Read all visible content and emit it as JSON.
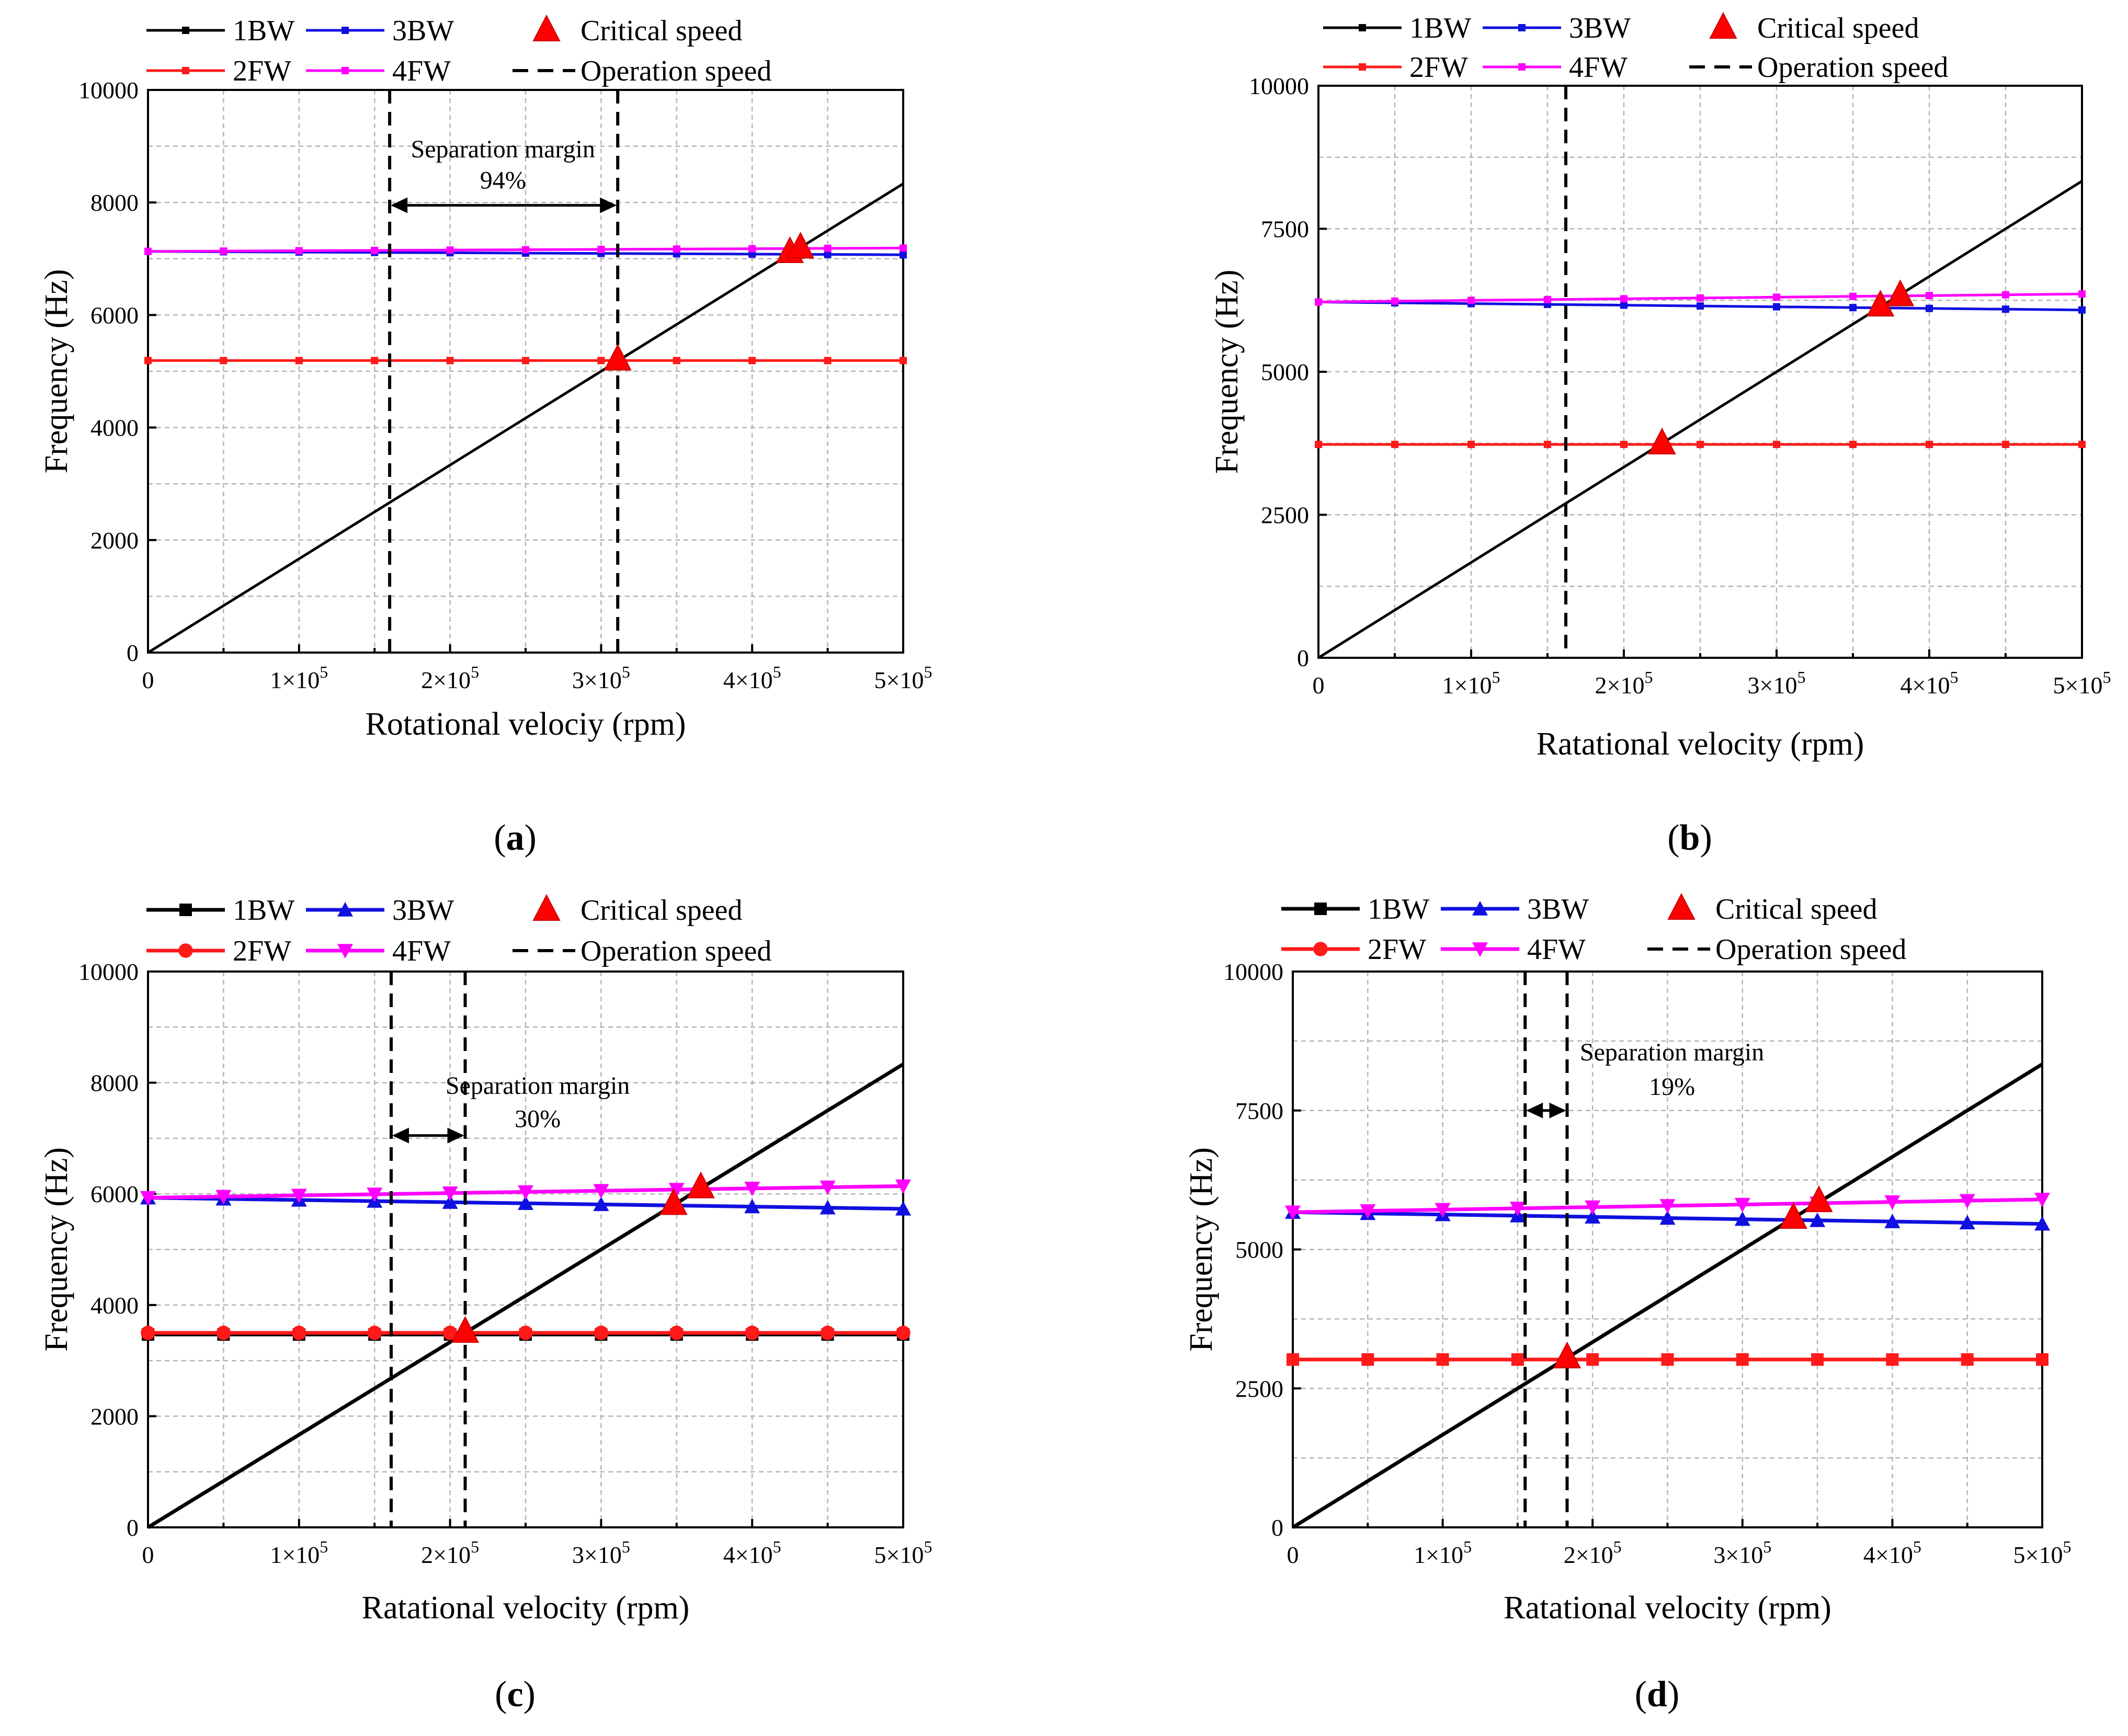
{
  "chart_data": [
    {
      "type": "line",
      "panel_label": "a",
      "xlabel": "Rotational velociy (rpm)",
      "ylabel": "Frequency (Hz)",
      "xlim": [
        0,
        500000
      ],
      "ylim": [
        0,
        10000
      ],
      "x_ticks": [
        0,
        100000,
        200000,
        300000,
        400000,
        500000
      ],
      "x_tick_labels": [
        {
          "m": "0",
          "e": ""
        },
        {
          "m": "1×10",
          "e": "5"
        },
        {
          "m": "2×10",
          "e": "5"
        },
        {
          "m": "3×10",
          "e": "5"
        },
        {
          "m": "4×10",
          "e": "5"
        },
        {
          "m": "5×10",
          "e": "5"
        }
      ],
      "y_ticks": [
        0,
        2000,
        4000,
        6000,
        8000,
        10000
      ],
      "y_tick_labels": [
        "0",
        "2000",
        "4000",
        "6000",
        "8000",
        "10000"
      ],
      "marker_style": "small",
      "legend": {
        "placement": "top-left",
        "entries": [
          {
            "label": "1BW",
            "kind": "line",
            "color": "#000000",
            "marker": "square"
          },
          {
            "label": "3BW",
            "kind": "line",
            "color": "#1010e0",
            "marker": "square"
          },
          {
            "label": "Critical speed",
            "kind": "triangle",
            "color": "#ff0000"
          },
          {
            "label": "2FW",
            "kind": "line",
            "color": "#ff1a1a",
            "marker": "square"
          },
          {
            "label": "4FW",
            "kind": "line",
            "color": "#ff00ff",
            "marker": "square"
          },
          {
            "label": "Operation speed",
            "kind": "dashed",
            "color": "#000000"
          }
        ]
      },
      "series": [
        {
          "name": "1BW",
          "color": "#000000",
          "marker": "none",
          "x": [
            0,
            500000
          ],
          "y": [
            0,
            8333
          ]
        },
        {
          "name": "2FW",
          "color": "#ff1a1a",
          "marker": "square",
          "x": [
            0,
            500000
          ],
          "y": [
            5190,
            5190
          ]
        },
        {
          "name": "3BW",
          "color": "#1010e0",
          "marker": "square",
          "x": [
            0,
            500000
          ],
          "y": [
            7130,
            7070
          ]
        },
        {
          "name": "4FW",
          "color": "#ff00ff",
          "marker": "square",
          "x": [
            0,
            500000
          ],
          "y": [
            7130,
            7190
          ]
        }
      ],
      "critical_speeds": [
        {
          "x": 311000,
          "y": 5190
        },
        {
          "x": 425000,
          "y": 7100
        },
        {
          "x": 432000,
          "y": 7180
        }
      ],
      "operation_speeds": [
        160000,
        311000
      ],
      "annotation": {
        "line1": "Separation margin",
        "line2": "94%",
        "x_from": 160000,
        "x_to": 311000,
        "arrow_y": 7950,
        "text_x": 235000,
        "text_y1": 8800,
        "text_y2": 8250
      }
    },
    {
      "type": "line",
      "panel_label": "b",
      "xlabel": "Ratational velocity (rpm)",
      "ylabel": "Frequency (Hz)",
      "xlim": [
        0,
        500000
      ],
      "ylim": [
        0,
        10000
      ],
      "x_ticks": [
        0,
        100000,
        200000,
        300000,
        400000,
        500000
      ],
      "x_tick_labels": [
        {
          "m": "0",
          "e": ""
        },
        {
          "m": "1×10",
          "e": "5"
        },
        {
          "m": "2×10",
          "e": "5"
        },
        {
          "m": "3×10",
          "e": "5"
        },
        {
          "m": "4×10",
          "e": "5"
        },
        {
          "m": "5×10",
          "e": "5"
        }
      ],
      "y_ticks": [
        0,
        2500,
        5000,
        7500,
        10000
      ],
      "y_tick_labels": [
        "0",
        "2500",
        "5000",
        "7500",
        "10000"
      ],
      "marker_style": "small",
      "legend": {
        "placement": "top-left",
        "entries": [
          {
            "label": "1BW",
            "kind": "line",
            "color": "#000000",
            "marker": "square"
          },
          {
            "label": "3BW",
            "kind": "line",
            "color": "#1010e0",
            "marker": "square"
          },
          {
            "label": "Critical speed",
            "kind": "triangle",
            "color": "#ff0000"
          },
          {
            "label": "2FW",
            "kind": "line",
            "color": "#ff1a1a",
            "marker": "square"
          },
          {
            "label": "4FW",
            "kind": "line",
            "color": "#ff00ff",
            "marker": "square"
          },
          {
            "label": "Operation speed",
            "kind": "dashed",
            "color": "#000000"
          }
        ]
      },
      "series": [
        {
          "name": "1BW",
          "color": "#000000",
          "marker": "none",
          "x": [
            0,
            500000
          ],
          "y": [
            0,
            8333
          ]
        },
        {
          "name": "2FW",
          "color": "#ff1a1a",
          "marker": "square",
          "x": [
            0,
            500000
          ],
          "y": [
            3730,
            3730
          ]
        },
        {
          "name": "3BW",
          "color": "#1010e0",
          "marker": "square",
          "x": [
            0,
            500000
          ],
          "y": [
            6220,
            6080
          ]
        },
        {
          "name": "4FW",
          "color": "#ff00ff",
          "marker": "square",
          "x": [
            0,
            500000
          ],
          "y": [
            6220,
            6360
          ]
        }
      ],
      "critical_speeds": [
        {
          "x": 225000,
          "y": 3730
        },
        {
          "x": 368000,
          "y": 6140
        },
        {
          "x": 381000,
          "y": 6320
        }
      ],
      "operation_speeds": [
        162000
      ],
      "annotation": null
    },
    {
      "type": "line",
      "panel_label": "c",
      "xlabel": "Ratational velocity (rpm)",
      "ylabel": "Frequency (Hz)",
      "xlim": [
        0,
        500000
      ],
      "ylim": [
        0,
        10000
      ],
      "x_ticks": [
        0,
        100000,
        200000,
        300000,
        400000,
        500000
      ],
      "x_tick_labels": [
        {
          "m": "0",
          "e": ""
        },
        {
          "m": "1×10",
          "e": "5"
        },
        {
          "m": "2×10",
          "e": "5"
        },
        {
          "m": "3×10",
          "e": "5"
        },
        {
          "m": "4×10",
          "e": "5"
        },
        {
          "m": "5×10",
          "e": "5"
        }
      ],
      "y_ticks": [
        0,
        2000,
        4000,
        6000,
        8000,
        10000
      ],
      "y_tick_labels": [
        "0",
        "2000",
        "4000",
        "6000",
        "8000",
        "10000"
      ],
      "marker_style": "large",
      "legend": {
        "placement": "top-left",
        "entries": [
          {
            "label": "1BW",
            "kind": "line",
            "color": "#000000",
            "marker": "square"
          },
          {
            "label": "3BW",
            "kind": "line",
            "color": "#1010e0",
            "marker": "triangle"
          },
          {
            "label": "Critical speed",
            "kind": "triangle",
            "color": "#ff0000"
          },
          {
            "label": "2FW",
            "kind": "line",
            "color": "#ff1a1a",
            "marker": "circle"
          },
          {
            "label": "4FW",
            "kind": "line",
            "color": "#ff00ff",
            "marker": "triangle-down"
          },
          {
            "label": "Operation speed",
            "kind": "dashed",
            "color": "#000000"
          }
        ]
      },
      "series": [
        {
          "name": "1BW",
          "color": "#000000",
          "marker": "none",
          "x": [
            0,
            500000
          ],
          "y": [
            0,
            8333
          ]
        },
        {
          "name": "1BW-flat",
          "color": "#000000",
          "marker": "square",
          "x": [
            0,
            500000
          ],
          "y": [
            3470,
            3470
          ]
        },
        {
          "name": "2FW",
          "color": "#ff1a1a",
          "marker": "circle",
          "x": [
            0,
            500000
          ],
          "y": [
            3500,
            3500
          ]
        },
        {
          "name": "3BW",
          "color": "#1010e0",
          "marker": "triangle",
          "x": [
            0,
            500000
          ],
          "y": [
            5930,
            5730
          ]
        },
        {
          "name": "4FW",
          "color": "#ff00ff",
          "marker": "triangle-down",
          "x": [
            0,
            500000
          ],
          "y": [
            5930,
            6140
          ]
        }
      ],
      "critical_speeds": [
        {
          "x": 210000,
          "y": 3500
        },
        {
          "x": 348000,
          "y": 5800
        },
        {
          "x": 366000,
          "y": 6100
        }
      ],
      "operation_speeds": [
        161000,
        210000
      ],
      "annotation": {
        "line1": "Separation margin",
        "line2": "30%",
        "x_from": 161000,
        "x_to": 210000,
        "arrow_y": 7050,
        "text_x": 258000,
        "text_y1": 7800,
        "text_y2": 7200
      }
    },
    {
      "type": "line",
      "panel_label": "d",
      "xlabel": "Ratational velocity (rpm)",
      "ylabel": "Frequency (Hz)",
      "xlim": [
        0,
        500000
      ],
      "ylim": [
        0,
        10000
      ],
      "x_ticks": [
        0,
        100000,
        200000,
        300000,
        400000,
        500000
      ],
      "x_tick_labels": [
        {
          "m": "0",
          "e": ""
        },
        {
          "m": "1×10",
          "e": "5"
        },
        {
          "m": "2×10",
          "e": "5"
        },
        {
          "m": "3×10",
          "e": "5"
        },
        {
          "m": "4×10",
          "e": "5"
        },
        {
          "m": "5×10",
          "e": "5"
        }
      ],
      "y_ticks": [
        0,
        2500,
        5000,
        7500,
        10000
      ],
      "y_tick_labels": [
        "0",
        "2500",
        "5000",
        "7500",
        "10000"
      ],
      "marker_style": "large",
      "legend": {
        "placement": "top-left",
        "entries": [
          {
            "label": "1BW",
            "kind": "line",
            "color": "#000000",
            "marker": "square"
          },
          {
            "label": "3BW",
            "kind": "line",
            "color": "#1010e0",
            "marker": "triangle"
          },
          {
            "label": "Critical speed",
            "kind": "triangle",
            "color": "#ff0000"
          },
          {
            "label": "2FW",
            "kind": "line",
            "color": "#ff1a1a",
            "marker": "circle"
          },
          {
            "label": "4FW",
            "kind": "line",
            "color": "#ff00ff",
            "marker": "triangle-down"
          },
          {
            "label": "Operation speed",
            "kind": "dashed",
            "color": "#000000"
          }
        ]
      },
      "series": [
        {
          "name": "1BW",
          "color": "#000000",
          "marker": "none",
          "x": [
            0,
            500000
          ],
          "y": [
            0,
            8333
          ]
        },
        {
          "name": "2FW",
          "color": "#ff1a1a",
          "marker": "square",
          "x": [
            0,
            500000
          ],
          "y": [
            3020,
            3020
          ]
        },
        {
          "name": "3BW",
          "color": "#1010e0",
          "marker": "triangle",
          "x": [
            0,
            500000
          ],
          "y": [
            5670,
            5460
          ]
        },
        {
          "name": "4FW",
          "color": "#ff00ff",
          "marker": "triangle-down",
          "x": [
            0,
            500000
          ],
          "y": [
            5670,
            5900
          ]
        }
      ],
      "critical_speeds": [
        {
          "x": 183000,
          "y": 3040
        },
        {
          "x": 334000,
          "y": 5550
        },
        {
          "x": 351000,
          "y": 5850
        }
      ],
      "operation_speeds": [
        155000,
        183000
      ],
      "annotation": {
        "line1": "Separation margin",
        "line2": "19%",
        "x_from": 155000,
        "x_to": 183000,
        "arrow_y": 7500,
        "text_x": 253000,
        "text_y1": 8400,
        "text_y2": 7780
      }
    }
  ]
}
